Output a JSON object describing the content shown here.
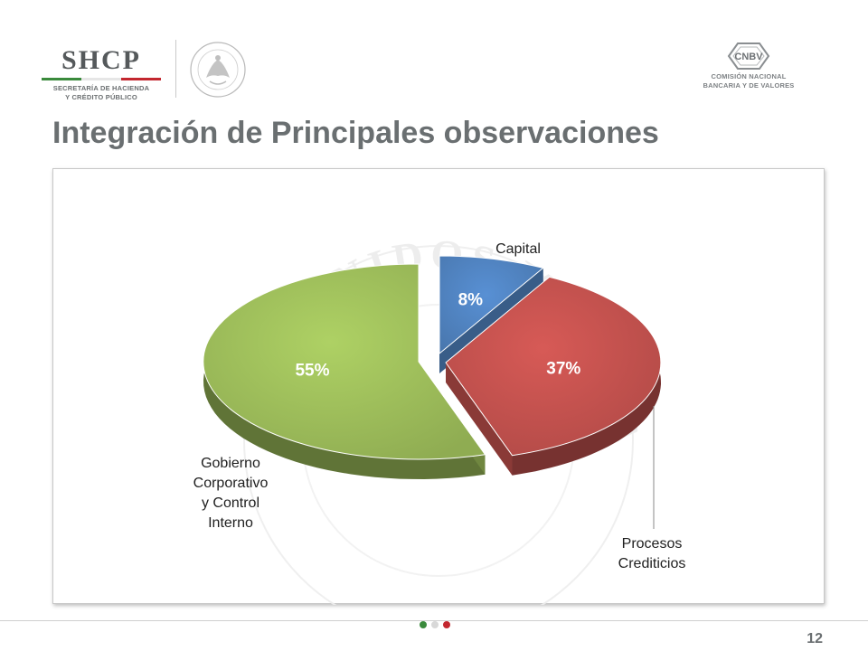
{
  "header": {
    "shcp": {
      "abbr": "SHCP",
      "line1": "SECRETARÍA DE HACIENDA",
      "line2": "Y CRÉDITO PÚBLICO"
    },
    "cnbv": {
      "abbr": "CNBV",
      "line1": "COMISIÓN NACIONAL",
      "line2": "BANCARIA Y DE VALORES"
    },
    "seal_text": "ESTADOS UNIDOS MEXICANOS"
  },
  "title": "Integración de Principales observaciones",
  "colors": {
    "title": "#6a6f71",
    "flag_green": "#3a8a3c",
    "flag_red": "#c3272f",
    "capital": "#4f81bd",
    "procesos": "#c0504d",
    "gobierno": "#9bbb59"
  },
  "chart_data": {
    "type": "pie",
    "title": "",
    "slices": [
      {
        "name": "Capital",
        "value": 8,
        "label": "8%",
        "color": "#4f81bd"
      },
      {
        "name": "Procesos Crediticios",
        "value": 37,
        "label": "37%",
        "color": "#c0504d"
      },
      {
        "name": "Gobierno Corporativo y Control Interno",
        "value": 55,
        "label": "55%",
        "color": "#9bbb59"
      }
    ],
    "category_labels": {
      "capital": [
        "Capital"
      ],
      "procesos": [
        "Procesos",
        "Crediticios"
      ],
      "gobierno": [
        "Gobierno",
        "Corporativo",
        "y Control",
        "Interno"
      ]
    },
    "style": "3d-exploded"
  },
  "footer": {
    "page_number": "12"
  }
}
